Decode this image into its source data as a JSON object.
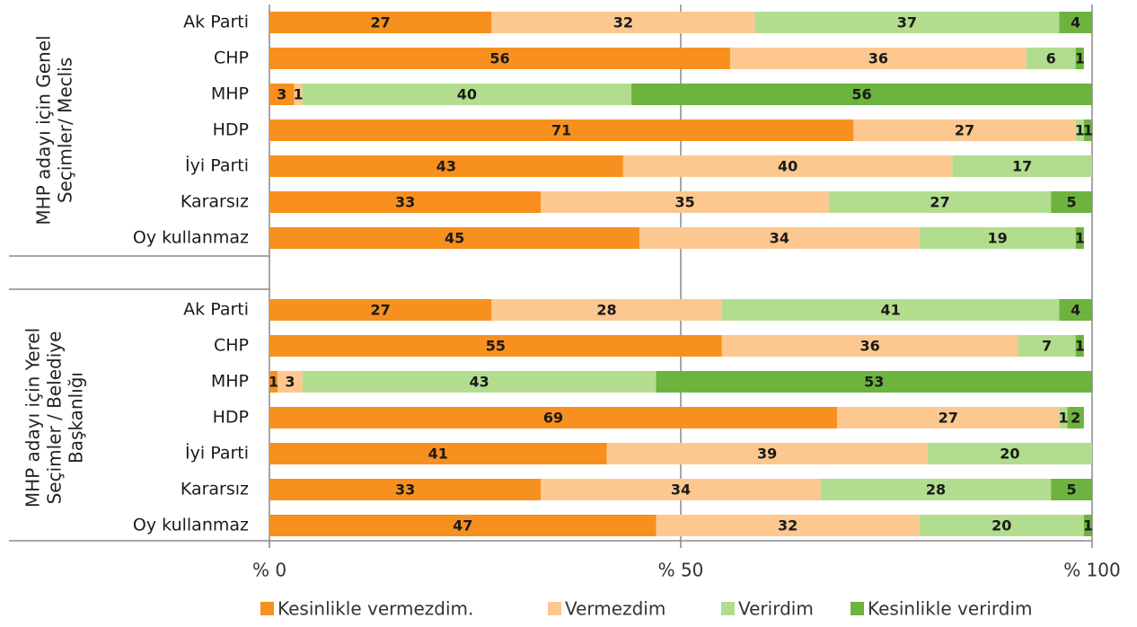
{
  "chart_data": {
    "type": "stacked-bar-horizontal",
    "groups": [
      {
        "label": [
          "MHP adayı için Genel",
          "Seçimler/ Meclis"
        ],
        "categories": [
          "Ak Parti",
          "CHP",
          "MHP",
          "HDP",
          "İyi Parti",
          "Kararsız",
          "Oy kullanmaz"
        ]
      },
      {
        "label": [
          "MHP adayı için Yerel",
          "Seçimler / Belediye",
          "Başkanlığı"
        ],
        "categories": [
          "Ak Parti",
          "CHP",
          "MHP",
          "HDP",
          "İyi Parti",
          "Kararsız",
          "Oy kullanmaz"
        ]
      }
    ],
    "series": [
      {
        "name": "Kesinlikle vermezdim.",
        "color": "#f7901e",
        "values": [
          [
            27,
            56,
            3,
            71,
            43,
            33,
            45
          ],
          [
            27,
            55,
            1,
            69,
            41,
            33,
            47
          ]
        ]
      },
      {
        "name": "Vermezdim",
        "color": "#fcc890",
        "values": [
          [
            32,
            36,
            1,
            27,
            40,
            35,
            34
          ],
          [
            28,
            36,
            3,
            27,
            39,
            34,
            32
          ]
        ]
      },
      {
        "name": "Verirdim",
        "color": "#b3dd8e",
        "values": [
          [
            37,
            6,
            40,
            1,
            17,
            27,
            19
          ],
          [
            41,
            7,
            43,
            1,
            20,
            28,
            20
          ]
        ]
      },
      {
        "name": "Kesinlikle verirdim",
        "color": "#6db33f",
        "values": [
          [
            4,
            1,
            56,
            1,
            null,
            5,
            1
          ],
          [
            4,
            1,
            53,
            2,
            null,
            5,
            1
          ]
        ]
      }
    ],
    "xlim": [
      0,
      100
    ],
    "xticks": [
      {
        "value": 0,
        "label": "% 0"
      },
      {
        "value": 50,
        "label": "% 50"
      },
      {
        "value": 100,
        "label": "% 100"
      }
    ],
    "grid": true,
    "legend": "bottom"
  }
}
